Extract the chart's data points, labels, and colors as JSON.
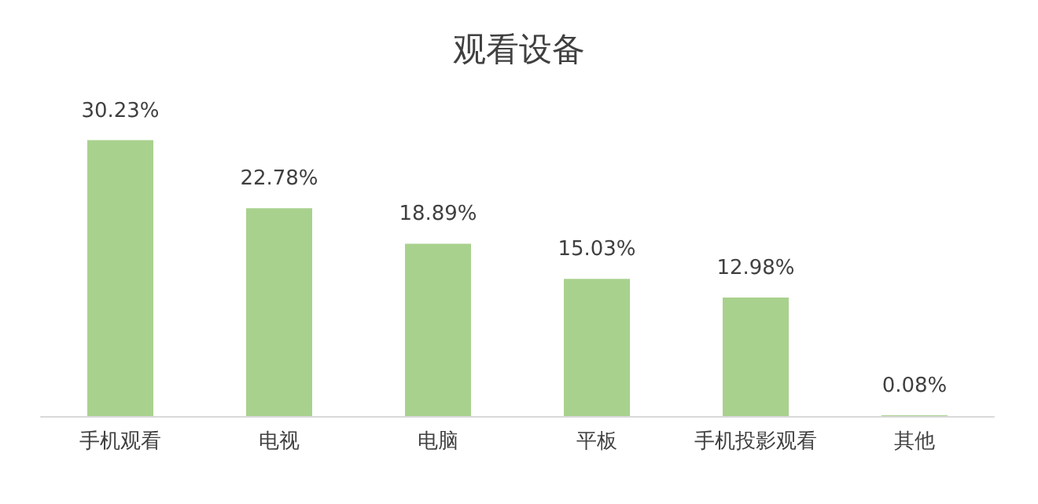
{
  "chart_data": {
    "type": "bar",
    "title": "观看设备",
    "categories": [
      "手机观看",
      "电视",
      "电脑",
      "平板",
      "手机投影观看",
      "其他"
    ],
    "values": [
      30.23,
      22.78,
      18.89,
      15.03,
      12.98,
      0.08
    ],
    "value_labels": [
      "30.23%",
      "22.78%",
      "18.89%",
      "15.03%",
      "12.98%",
      "0.08%"
    ],
    "color": "#a9d18e"
  }
}
